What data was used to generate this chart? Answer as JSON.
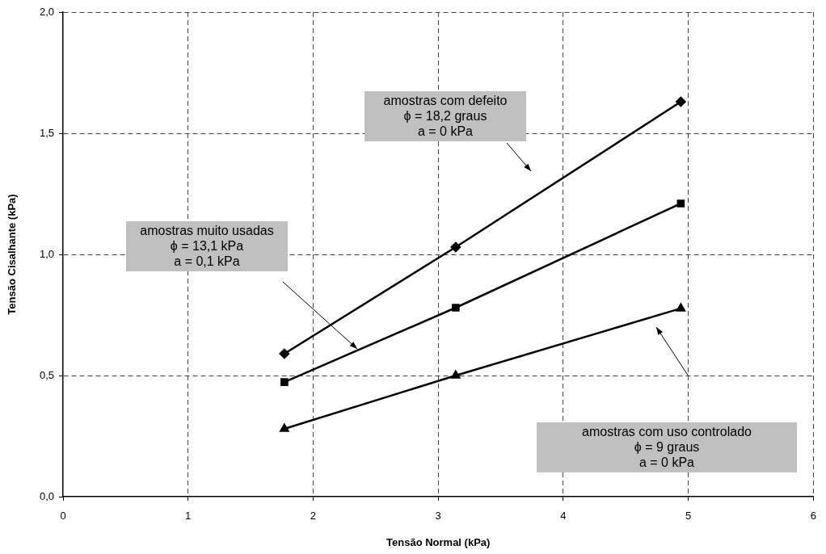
{
  "chart_data": {
    "type": "line",
    "xlabel": "Tensão Normal (kPa)",
    "ylabel": "Tensão Cisalhante (kPa)",
    "x": [
      1.77,
      3.14,
      4.94
    ],
    "series": [
      {
        "color": "#000000",
        "marker": "diamond",
        "values": [
          0.59,
          1.03,
          1.63
        ]
      },
      {
        "color": "#000000",
        "marker": "square",
        "values": [
          0.473,
          0.78,
          1.21
        ]
      },
      {
        "color": "#000000",
        "marker": "triangle",
        "values": [
          0.28,
          0.5,
          0.777
        ]
      }
    ],
    "xlim": [
      0,
      6
    ],
    "xticks": [
      0,
      1,
      2,
      3,
      4,
      5,
      6
    ],
    "ylim": [
      0,
      2
    ],
    "yticks": [
      {
        "value": 0,
        "label": "0,0"
      },
      {
        "value": 0.5,
        "label": "0,5"
      },
      {
        "value": 1,
        "label": "1,0"
      },
      {
        "value": 1.5,
        "label": "1,5"
      },
      {
        "value": 2,
        "label": "2,0"
      }
    ],
    "grid": true,
    "line_style": "solid",
    "annotations": [
      "amostras com defeito\nϕ = 18,2 graus\na = 0 kPa",
      "amostras muito usadas\nϕ = 13,1 kPa\na = 0,1 kPa",
      "amostras com uso controlado\nϕ = 9 graus\na = 0 kPa"
    ]
  }
}
